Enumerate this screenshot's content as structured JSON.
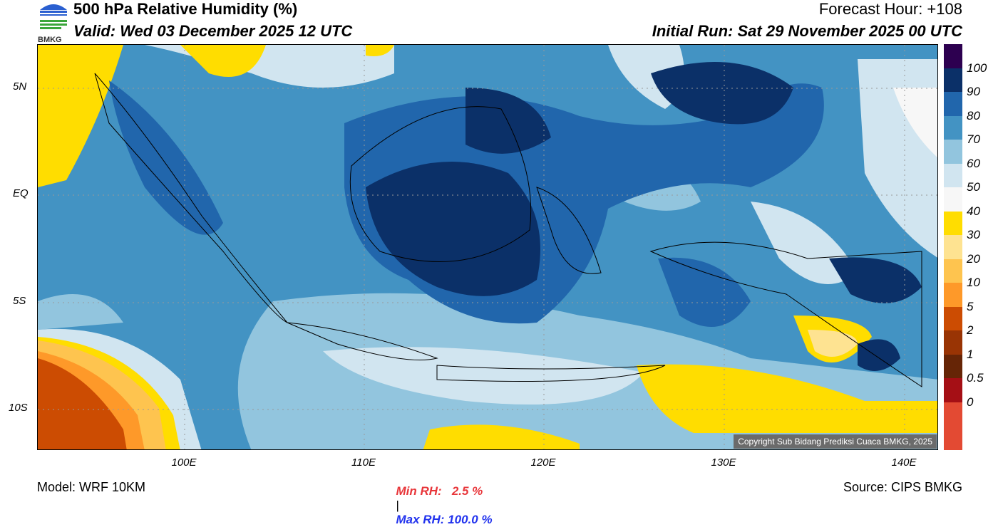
{
  "header": {
    "title": "500 hPa Relative Humidity (%)",
    "valid": "Valid: Wed 03 December 2025 12 UTC",
    "forecast_hour": "Forecast Hour: +108",
    "initial_run": "Initial Run: Sat 29 November 2025 00 UTC",
    "logo_text": "BMKG"
  },
  "axes": {
    "lat_labels": [
      "5N",
      "EQ",
      "5S",
      "10S"
    ],
    "lon_labels": [
      "100E",
      "110E",
      "120E",
      "130E",
      "140E"
    ]
  },
  "colorbar": {
    "labels": [
      "100",
      "90",
      "80",
      "70",
      "60",
      "50",
      "40",
      "30",
      "20",
      "10",
      "5",
      "2",
      "1",
      "0.5",
      "0"
    ],
    "colors": [
      "#2d0050",
      "#0b3068",
      "#2166ac",
      "#4393c3",
      "#92c5de",
      "#d1e5f0",
      "#f7f7f7",
      "#ffdd00",
      "#fee391",
      "#fec44f",
      "#fe9929",
      "#cc4c02",
      "#993404",
      "#662506",
      "#a50f15",
      "#e34a33",
      "#e34a33"
    ]
  },
  "map": {
    "copyright": "Copyright Sub Bidang Prediksi Cuaca BMKG, 2025"
  },
  "footer": {
    "model": "Model: WRF 10KM",
    "min_rh": "Min RH:   2.5 %",
    "sep": "|",
    "max_rh": "Max RH: 100.0 %",
    "source": "Source: CIPS BMKG",
    "min_color": "#e8363a",
    "max_color": "#2233ee"
  }
}
